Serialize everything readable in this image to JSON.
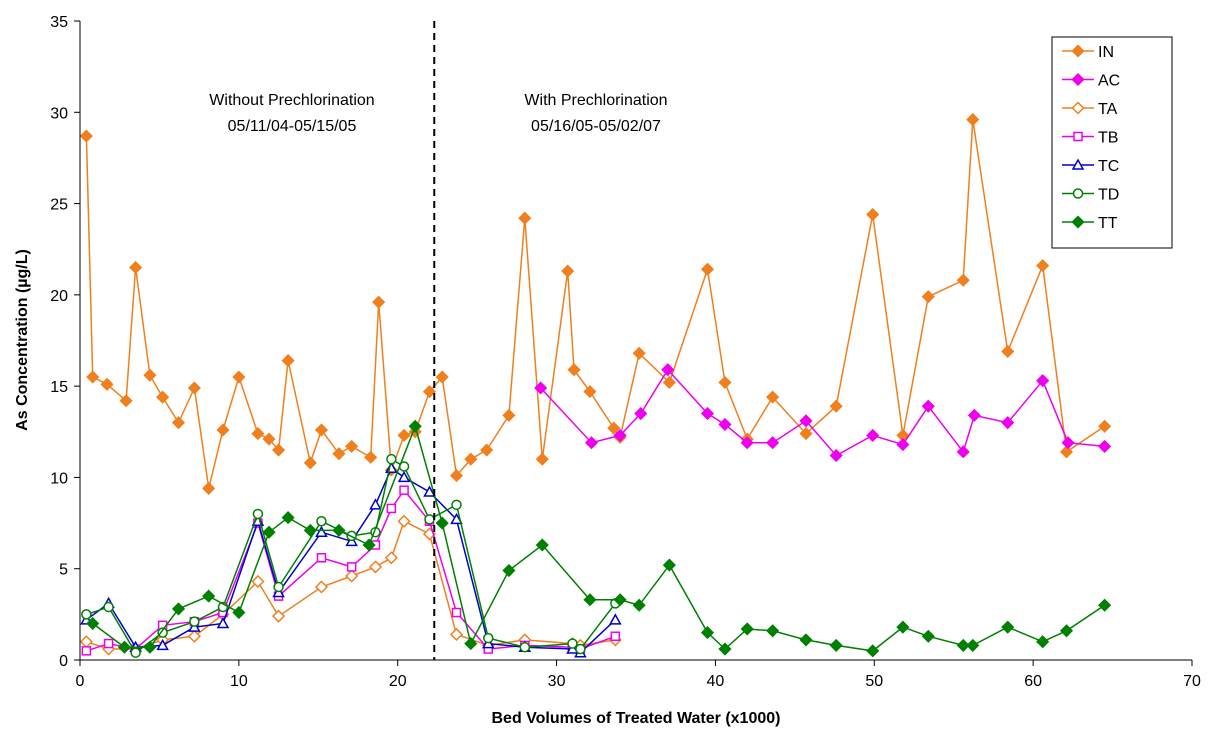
{
  "chart_data": {
    "type": "line",
    "xlabel": "Bed Volumes of Treated Water (x1000)",
    "ylabel": "As Concentration (µg/L)",
    "xlim": [
      0,
      70
    ],
    "ylim": [
      0,
      35
    ],
    "xticks": [
      0,
      10,
      20,
      30,
      40,
      50,
      60,
      70
    ],
    "yticks": [
      0,
      5,
      10,
      15,
      20,
      25,
      30,
      35
    ],
    "grid": false,
    "legend_position": "top-right",
    "divider_x": 22.3,
    "annotations": [
      {
        "lines": [
          "Without Prechlorination",
          "05/11/04-05/15/05"
        ]
      },
      {
        "lines": [
          "With Prechlorination",
          "05/16/05-05/02/07"
        ]
      }
    ],
    "series": [
      {
        "name": "IN",
        "color": "#f07f1e",
        "marker": "diamond-filled",
        "points": [
          [
            0.4,
            28.7
          ],
          [
            0.8,
            15.5
          ],
          [
            1.7,
            15.1
          ],
          [
            2.9,
            14.2
          ],
          [
            3.5,
            21.5
          ],
          [
            4.4,
            15.6
          ],
          [
            5.2,
            14.4
          ],
          [
            6.2,
            13.0
          ],
          [
            7.2,
            14.9
          ],
          [
            8.1,
            9.4
          ],
          [
            9.0,
            12.6
          ],
          [
            10.0,
            15.5
          ],
          [
            11.2,
            12.4
          ],
          [
            11.9,
            12.1
          ],
          [
            12.5,
            11.5
          ],
          [
            13.1,
            16.4
          ],
          [
            14.5,
            10.8
          ],
          [
            15.2,
            12.6
          ],
          [
            16.3,
            11.3
          ],
          [
            17.1,
            11.7
          ],
          [
            18.3,
            11.1
          ],
          [
            18.8,
            19.6
          ],
          [
            19.6,
            10.4
          ],
          [
            20.4,
            12.3
          ],
          [
            21.1,
            12.5
          ],
          [
            22.0,
            14.7
          ],
          [
            22.8,
            15.5
          ],
          [
            23.7,
            10.1
          ],
          [
            24.6,
            11.0
          ],
          [
            25.6,
            11.5
          ],
          [
            27.0,
            13.4
          ],
          [
            28.0,
            24.2
          ],
          [
            29.1,
            11.0
          ],
          [
            30.7,
            21.3
          ],
          [
            31.1,
            15.9
          ],
          [
            32.1,
            14.7
          ],
          [
            33.6,
            12.7
          ],
          [
            34.0,
            12.2
          ],
          [
            35.2,
            16.8
          ],
          [
            37.1,
            15.2
          ],
          [
            39.5,
            21.4
          ],
          [
            40.6,
            15.2
          ],
          [
            42.0,
            12.1
          ],
          [
            43.6,
            14.4
          ],
          [
            45.7,
            12.4
          ],
          [
            47.6,
            13.9
          ],
          [
            49.9,
            24.4
          ],
          [
            51.8,
            12.3
          ],
          [
            53.4,
            19.9
          ],
          [
            55.6,
            20.8
          ],
          [
            56.2,
            29.6
          ],
          [
            58.4,
            16.9
          ],
          [
            60.6,
            21.6
          ],
          [
            62.1,
            11.4
          ],
          [
            64.5,
            12.8
          ]
        ]
      },
      {
        "name": "AC",
        "color": "#ee00ee",
        "marker": "diamond-filled",
        "points": [
          [
            29.0,
            14.9
          ],
          [
            32.2,
            11.9
          ],
          [
            34.0,
            12.3
          ],
          [
            35.3,
            13.5
          ],
          [
            37.0,
            15.9
          ],
          [
            39.5,
            13.5
          ],
          [
            40.6,
            12.9
          ],
          [
            42.0,
            11.9
          ],
          [
            43.6,
            11.9
          ],
          [
            45.7,
            13.1
          ],
          [
            47.6,
            11.2
          ],
          [
            49.9,
            12.3
          ],
          [
            51.8,
            11.8
          ],
          [
            53.4,
            13.9
          ],
          [
            55.6,
            11.4
          ],
          [
            56.3,
            13.4
          ],
          [
            58.4,
            13.0
          ],
          [
            60.6,
            15.3
          ],
          [
            62.2,
            11.9
          ],
          [
            64.5,
            11.7
          ]
        ]
      },
      {
        "name": "TA",
        "color": "#f07f1e",
        "marker": "diamond-open",
        "points": [
          [
            0.4,
            1.0
          ],
          [
            1.8,
            0.6
          ],
          [
            3.5,
            0.6
          ],
          [
            5.2,
            1.1
          ],
          [
            7.2,
            1.3
          ],
          [
            9.0,
            2.5
          ],
          [
            11.2,
            4.3
          ],
          [
            12.5,
            2.4
          ],
          [
            15.2,
            4.0
          ],
          [
            17.1,
            4.6
          ],
          [
            18.6,
            5.1
          ],
          [
            19.6,
            5.6
          ],
          [
            20.4,
            7.6
          ],
          [
            22.0,
            6.9
          ],
          [
            23.7,
            1.4
          ],
          [
            25.7,
            0.8
          ],
          [
            28.0,
            1.1
          ],
          [
            31.0,
            0.9
          ],
          [
            31.5,
            0.8
          ],
          [
            33.7,
            1.1
          ]
        ]
      },
      {
        "name": "TB",
        "color": "#ee00ee",
        "marker": "square-open",
        "points": [
          [
            0.4,
            0.5
          ],
          [
            1.8,
            0.9
          ],
          [
            3.5,
            0.6
          ],
          [
            5.2,
            1.9
          ],
          [
            7.2,
            2.1
          ],
          [
            9.0,
            2.6
          ],
          [
            11.2,
            7.5
          ],
          [
            12.5,
            3.5
          ],
          [
            15.2,
            5.6
          ],
          [
            17.1,
            5.1
          ],
          [
            18.6,
            6.3
          ],
          [
            19.6,
            8.3
          ],
          [
            20.4,
            9.3
          ],
          [
            22.0,
            7.6
          ],
          [
            23.7,
            2.6
          ],
          [
            25.7,
            0.6
          ],
          [
            28.0,
            0.8
          ],
          [
            31.0,
            0.7
          ],
          [
            31.5,
            0.6
          ],
          [
            33.7,
            1.3
          ]
        ]
      },
      {
        "name": "TC",
        "color": "#0000cc",
        "marker": "triangle-open",
        "points": [
          [
            0.4,
            2.2
          ],
          [
            1.8,
            3.1
          ],
          [
            3.5,
            0.7
          ],
          [
            5.2,
            0.8
          ],
          [
            7.2,
            1.8
          ],
          [
            9.0,
            2.0
          ],
          [
            11.2,
            7.6
          ],
          [
            12.5,
            3.7
          ],
          [
            15.2,
            7.0
          ],
          [
            17.1,
            6.5
          ],
          [
            18.6,
            8.5
          ],
          [
            19.6,
            10.5
          ],
          [
            20.4,
            10.0
          ],
          [
            22.0,
            9.2
          ],
          [
            23.7,
            7.7
          ],
          [
            25.7,
            0.9
          ],
          [
            28.0,
            0.7
          ],
          [
            31.0,
            0.6
          ],
          [
            31.5,
            0.4
          ],
          [
            33.7,
            2.2
          ]
        ]
      },
      {
        "name": "TD",
        "color": "#008000",
        "marker": "circle-open",
        "points": [
          [
            0.4,
            2.5
          ],
          [
            1.8,
            2.9
          ],
          [
            3.5,
            0.4
          ],
          [
            5.2,
            1.5
          ],
          [
            7.2,
            2.1
          ],
          [
            9.0,
            2.9
          ],
          [
            11.2,
            8.0
          ],
          [
            12.5,
            4.0
          ],
          [
            15.2,
            7.6
          ],
          [
            17.1,
            6.8
          ],
          [
            18.6,
            7.0
          ],
          [
            19.6,
            11.0
          ],
          [
            20.4,
            10.6
          ],
          [
            22.0,
            7.7
          ],
          [
            23.7,
            8.5
          ],
          [
            25.7,
            1.2
          ],
          [
            28.0,
            0.7
          ],
          [
            31.0,
            0.9
          ],
          [
            31.5,
            0.6
          ],
          [
            33.7,
            3.1
          ]
        ]
      },
      {
        "name": "TT",
        "color": "#008000",
        "marker": "diamond-filled",
        "points": [
          [
            0.8,
            2.0
          ],
          [
            2.8,
            0.7
          ],
          [
            4.4,
            0.7
          ],
          [
            6.2,
            2.8
          ],
          [
            8.1,
            3.5
          ],
          [
            10.0,
            2.6
          ],
          [
            11.9,
            7.0
          ],
          [
            13.1,
            7.8
          ],
          [
            14.5,
            7.1
          ],
          [
            16.3,
            7.1
          ],
          [
            18.2,
            6.3
          ],
          [
            21.1,
            12.8
          ],
          [
            22.8,
            7.5
          ],
          [
            24.6,
            0.9
          ],
          [
            27.0,
            4.9
          ],
          [
            29.1,
            6.3
          ],
          [
            32.1,
            3.3
          ],
          [
            34.0,
            3.3
          ],
          [
            35.2,
            3.0
          ],
          [
            37.1,
            5.2
          ],
          [
            39.5,
            1.5
          ],
          [
            40.6,
            0.6
          ],
          [
            42.0,
            1.7
          ],
          [
            43.6,
            1.6
          ],
          [
            45.7,
            1.1
          ],
          [
            47.6,
            0.8
          ],
          [
            49.9,
            0.5
          ],
          [
            51.8,
            1.8
          ],
          [
            53.4,
            1.3
          ],
          [
            55.6,
            0.8
          ],
          [
            56.2,
            0.8
          ],
          [
            58.4,
            1.8
          ],
          [
            60.6,
            1.0
          ],
          [
            62.1,
            1.6
          ],
          [
            64.5,
            3.0
          ]
        ]
      }
    ]
  }
}
